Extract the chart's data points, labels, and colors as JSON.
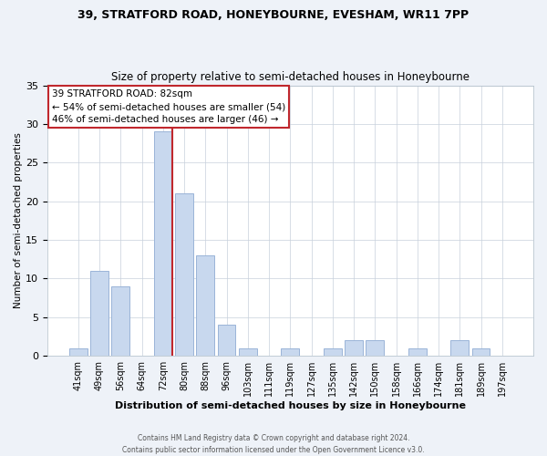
{
  "title1": "39, STRATFORD ROAD, HONEYBOURNE, EVESHAM, WR11 7PP",
  "title2": "Size of property relative to semi-detached houses in Honeybourne",
  "xlabel": "Distribution of semi-detached houses by size in Honeybourne",
  "ylabel": "Number of semi-detached properties",
  "bin_labels": [
    "41sqm",
    "49sqm",
    "56sqm",
    "64sqm",
    "72sqm",
    "80sqm",
    "88sqm",
    "96sqm",
    "103sqm",
    "111sqm",
    "119sqm",
    "127sqm",
    "135sqm",
    "142sqm",
    "150sqm",
    "158sqm",
    "166sqm",
    "174sqm",
    "181sqm",
    "189sqm",
    "197sqm"
  ],
  "bar_heights": [
    1,
    11,
    9,
    0,
    29,
    21,
    13,
    4,
    1,
    0,
    1,
    0,
    1,
    2,
    2,
    0,
    1,
    0,
    2,
    1,
    0
  ],
  "bar_color": "#c8d8ee",
  "bar_edge_color": "#9ab4d8",
  "highlight_color": "#c0272d",
  "highlight_bin_index": 4,
  "annotation_text_line1": "39 STRATFORD ROAD: 82sqm",
  "annotation_text_line2": "← 54% of semi-detached houses are smaller (54)",
  "annotation_text_line3": "46% of semi-detached houses are larger (46) →",
  "ylim": [
    0,
    35
  ],
  "yticks": [
    0,
    5,
    10,
    15,
    20,
    25,
    30,
    35
  ],
  "footer1": "Contains HM Land Registry data © Crown copyright and database right 2024.",
  "footer2": "Contains public sector information licensed under the Open Government Licence v3.0.",
  "bg_color": "#eef2f8",
  "plot_bg_color": "#ffffff"
}
